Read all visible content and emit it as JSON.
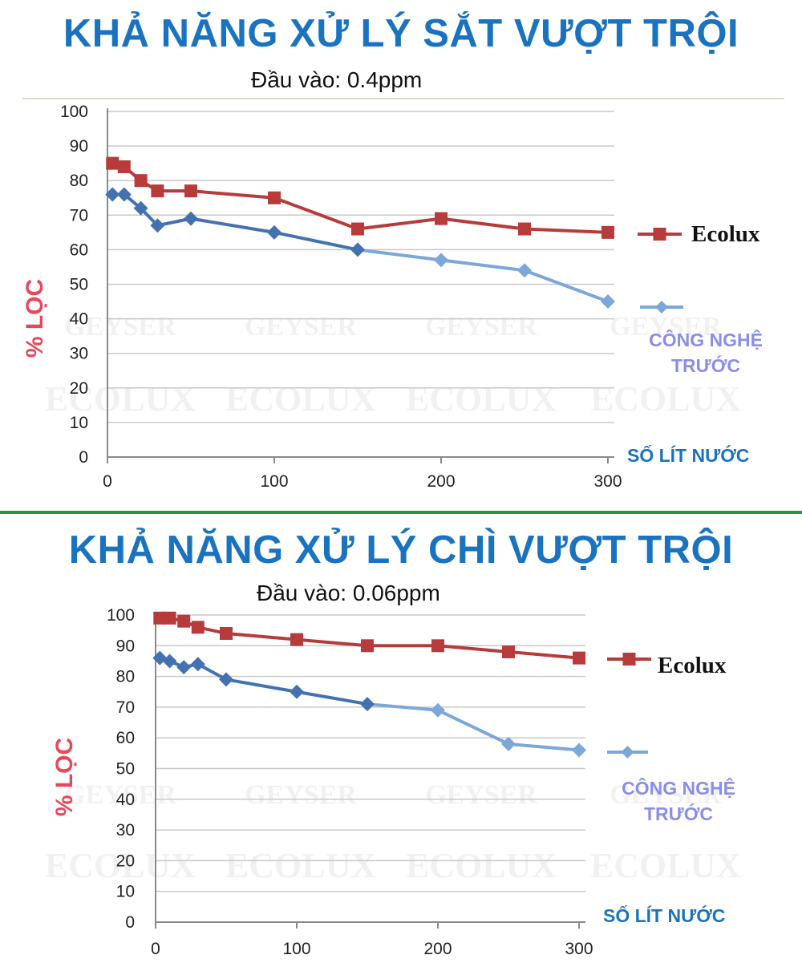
{
  "chart_data": [
    {
      "type": "line",
      "title": "KHẢ NĂNG XỬ LÝ SẮT VƯỢT TRỘI",
      "subtitle": "Đầu vào: 0.4ppm",
      "ylabel": "% LỌC",
      "xlabel": "SỐ LÍT NƯỚC",
      "xlim": [
        0,
        300
      ],
      "ylim": [
        0,
        100
      ],
      "xticks": [
        0,
        100,
        200,
        300
      ],
      "yticks": [
        0,
        10,
        20,
        30,
        40,
        50,
        60,
        70,
        80,
        90,
        100
      ],
      "grid": true,
      "legend_position": "right",
      "series": [
        {
          "name": "Ecolux",
          "color": "#b83b3b",
          "marker": "square",
          "x": [
            3,
            10,
            20,
            30,
            50,
            100,
            150,
            200,
            250,
            300
          ],
          "y": [
            85,
            84,
            80,
            77,
            77,
            75,
            66,
            69,
            66,
            65
          ]
        },
        {
          "name": "CÔNG NGHỆ TRƯỚC",
          "color": "#4472b0",
          "color_end": "#7ba7d9",
          "marker": "diamond",
          "x": [
            3,
            10,
            20,
            30,
            50,
            100,
            150,
            200,
            250,
            300
          ],
          "y": [
            76,
            76,
            72,
            67,
            69,
            65,
            60,
            57,
            54,
            45
          ]
        }
      ]
    },
    {
      "type": "line",
      "title": "KHẢ NĂNG XỬ LÝ CHÌ VƯỢT TRỘI",
      "subtitle": "Đầu vào: 0.06ppm",
      "ylabel": "% LỌC",
      "xlabel": "SỐ LÍT NƯỚC",
      "xlim": [
        0,
        300
      ],
      "ylim": [
        0,
        100
      ],
      "xticks": [
        0,
        100,
        200,
        300
      ],
      "yticks": [
        0,
        10,
        20,
        30,
        40,
        50,
        60,
        70,
        80,
        90,
        100
      ],
      "grid": true,
      "legend_position": "right",
      "series": [
        {
          "name": "Ecolux",
          "color": "#b83b3b",
          "marker": "square",
          "x": [
            3,
            10,
            20,
            30,
            50,
            100,
            150,
            200,
            250,
            300
          ],
          "y": [
            99,
            99,
            98,
            96,
            94,
            92,
            90,
            90,
            88,
            86
          ]
        },
        {
          "name": "CÔNG NGHỆ TRƯỚC",
          "color": "#4472b0",
          "color_end": "#7ba7d9",
          "marker": "diamond",
          "x": [
            3,
            10,
            20,
            30,
            50,
            100,
            150,
            200,
            250,
            300
          ],
          "y": [
            86,
            85,
            83,
            84,
            79,
            75,
            71,
            69,
            58,
            56
          ]
        }
      ]
    }
  ],
  "legend_line2": [
    "CÔNG NGHỆ",
    "TRƯỚC"
  ],
  "watermarks": {
    "brand_a": "GEYSER",
    "brand_b": "ECOLUX"
  }
}
